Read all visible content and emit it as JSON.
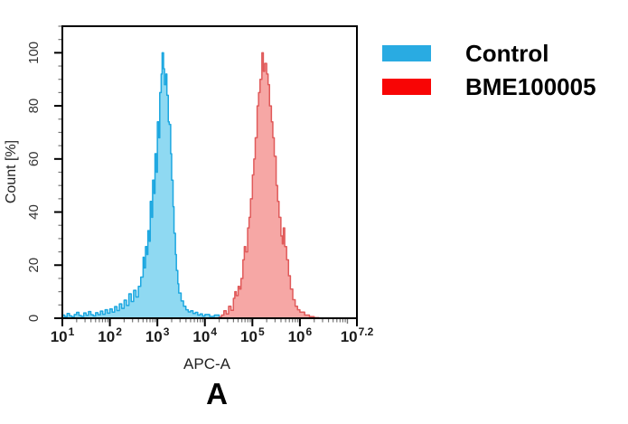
{
  "figure": {
    "panel_label": "A",
    "background": "#ffffff"
  },
  "legend": {
    "items": [
      {
        "name": "control",
        "label": "Control",
        "color": "#29ABE2"
      },
      {
        "name": "bme100005",
        "label": "BME100005",
        "color": "#F80505"
      }
    ]
  },
  "chart_data": {
    "type": "area",
    "subtype": "flow-cytometry-histogram",
    "title": "",
    "xlabel": "APC-A",
    "ylabel": "Count [%]",
    "x_scale": "log10",
    "x_range_log": [
      1.0,
      7.2
    ],
    "ylim": [
      0,
      110
    ],
    "grid": false,
    "legend_position": "right-outside",
    "y_major_ticks": [
      0,
      20,
      40,
      60,
      80,
      100
    ],
    "y_minor_step": 5,
    "x_major_ticks": [
      {
        "base": "10",
        "exp": "1",
        "log": 1.0
      },
      {
        "base": "10",
        "exp": "2",
        "log": 2.0
      },
      {
        "base": "10",
        "exp": "3",
        "log": 3.0
      },
      {
        "base": "10",
        "exp": "4",
        "log": 4.0
      },
      {
        "base": "10",
        "exp": "5",
        "log": 5.0
      },
      {
        "base": "10",
        "exp": "6",
        "log": 6.0
      },
      {
        "base": "10",
        "exp": "7.2",
        "log": 7.2
      }
    ],
    "axis_color": "#000000",
    "minor_tick_color": "#777777",
    "tick_label_color": "#1a1a1a",
    "series": [
      {
        "name": "Control",
        "stroke": "#1CA7E0",
        "fill": "#8FD9F2",
        "peak_log_x": 3.1,
        "peak_percent": 100,
        "points": [
          [
            1.0,
            1.2
          ],
          [
            1.05,
            0.6
          ],
          [
            1.1,
            1.8
          ],
          [
            1.15,
            0.9
          ],
          [
            1.2,
            0.5
          ],
          [
            1.25,
            1.4
          ],
          [
            1.3,
            2.2
          ],
          [
            1.35,
            1.0
          ],
          [
            1.4,
            0.7
          ],
          [
            1.45,
            2.0
          ],
          [
            1.5,
            1.1
          ],
          [
            1.55,
            2.5
          ],
          [
            1.6,
            1.3
          ],
          [
            1.65,
            0.9
          ],
          [
            1.7,
            2.1
          ],
          [
            1.75,
            1.3
          ],
          [
            1.8,
            2.7
          ],
          [
            1.85,
            1.5
          ],
          [
            1.9,
            3.2
          ],
          [
            1.95,
            1.9
          ],
          [
            2.0,
            3.5
          ],
          [
            2.05,
            2.3
          ],
          [
            2.1,
            4.4
          ],
          [
            2.15,
            2.9
          ],
          [
            2.2,
            5.4
          ],
          [
            2.25,
            3.7
          ],
          [
            2.3,
            6.8
          ],
          [
            2.35,
            4.8
          ],
          [
            2.4,
            9.2
          ],
          [
            2.45,
            6.3
          ],
          [
            2.5,
            10.5
          ],
          [
            2.55,
            8.0
          ],
          [
            2.6,
            12.0
          ],
          [
            2.65,
            15.5
          ],
          [
            2.7,
            23.0
          ],
          [
            2.72,
            19.0
          ],
          [
            2.75,
            27.0
          ],
          [
            2.78,
            24.0
          ],
          [
            2.8,
            33.0
          ],
          [
            2.83,
            29.0
          ],
          [
            2.85,
            44.0
          ],
          [
            2.88,
            38.0
          ],
          [
            2.9,
            52.0
          ],
          [
            2.93,
            47.0
          ],
          [
            2.95,
            62.0
          ],
          [
            2.98,
            55.0
          ],
          [
            3.0,
            74.0
          ],
          [
            3.03,
            68.0
          ],
          [
            3.05,
            85.0
          ],
          [
            3.08,
            92.0
          ],
          [
            3.1,
            100.0
          ],
          [
            3.13,
            94.0
          ],
          [
            3.15,
            88.0
          ],
          [
            3.18,
            92.0
          ],
          [
            3.2,
            84.0
          ],
          [
            3.23,
            74.0
          ],
          [
            3.25,
            73.0
          ],
          [
            3.28,
            62.0
          ],
          [
            3.3,
            52.0
          ],
          [
            3.33,
            42.0
          ],
          [
            3.35,
            32.0
          ],
          [
            3.38,
            24.0
          ],
          [
            3.4,
            18.0
          ],
          [
            3.43,
            13.0
          ],
          [
            3.45,
            9.5
          ],
          [
            3.5,
            6.5
          ],
          [
            3.55,
            4.5
          ],
          [
            3.6,
            3.2
          ],
          [
            3.65,
            2.4
          ],
          [
            3.7,
            2.8
          ],
          [
            3.75,
            1.8
          ],
          [
            3.8,
            2.2
          ],
          [
            3.85,
            1.2
          ],
          [
            3.9,
            1.6
          ],
          [
            3.95,
            0.8
          ],
          [
            4.0,
            1.4
          ],
          [
            4.1,
            0.7
          ],
          [
            4.2,
            1.2
          ],
          [
            4.3,
            0.5
          ],
          [
            4.4,
            1.0
          ],
          [
            4.5,
            0.4
          ],
          [
            4.6,
            0.8
          ],
          [
            4.7,
            0.3
          ],
          [
            4.8,
            0.1
          ],
          [
            4.9,
            0.0
          ]
        ]
      },
      {
        "name": "BME100005",
        "stroke": "#E05A5A",
        "fill": "#F6A7A5",
        "peak_log_x": 5.2,
        "peak_percent": 100,
        "points": [
          [
            4.2,
            0.0
          ],
          [
            4.3,
            0.4
          ],
          [
            4.35,
            1.2
          ],
          [
            4.4,
            2.8
          ],
          [
            4.45,
            1.6
          ],
          [
            4.5,
            4.5
          ],
          [
            4.55,
            3.0
          ],
          [
            4.6,
            7.5
          ],
          [
            4.63,
            10.0
          ],
          [
            4.66,
            8.5
          ],
          [
            4.7,
            12.0
          ],
          [
            4.73,
            11.0
          ],
          [
            4.76,
            15.0
          ],
          [
            4.8,
            22.0
          ],
          [
            4.83,
            27.0
          ],
          [
            4.86,
            25.0
          ],
          [
            4.9,
            34.0
          ],
          [
            4.93,
            38.0
          ],
          [
            4.96,
            45.0
          ],
          [
            5.0,
            54.0
          ],
          [
            5.03,
            60.0
          ],
          [
            5.06,
            68.0
          ],
          [
            5.1,
            80.0
          ],
          [
            5.13,
            85.0
          ],
          [
            5.16,
            90.0
          ],
          [
            5.2,
            100.0
          ],
          [
            5.23,
            93.0
          ],
          [
            5.26,
            96.0
          ],
          [
            5.3,
            92.0
          ],
          [
            5.33,
            88.0
          ],
          [
            5.36,
            80.0
          ],
          [
            5.4,
            74.0
          ],
          [
            5.43,
            68.0
          ],
          [
            5.46,
            61.0
          ],
          [
            5.5,
            50.0
          ],
          [
            5.53,
            44.0
          ],
          [
            5.56,
            38.0
          ],
          [
            5.6,
            31.0
          ],
          [
            5.63,
            28.0
          ],
          [
            5.65,
            34.0
          ],
          [
            5.68,
            27.0
          ],
          [
            5.72,
            22.0
          ],
          [
            5.76,
            16.0
          ],
          [
            5.8,
            11.0
          ],
          [
            5.85,
            7.0
          ],
          [
            5.9,
            4.5
          ],
          [
            5.95,
            3.2
          ],
          [
            6.0,
            2.3
          ],
          [
            6.1,
            1.2
          ],
          [
            6.2,
            0.6
          ],
          [
            6.3,
            0.2
          ],
          [
            6.4,
            0.0
          ]
        ]
      }
    ]
  }
}
